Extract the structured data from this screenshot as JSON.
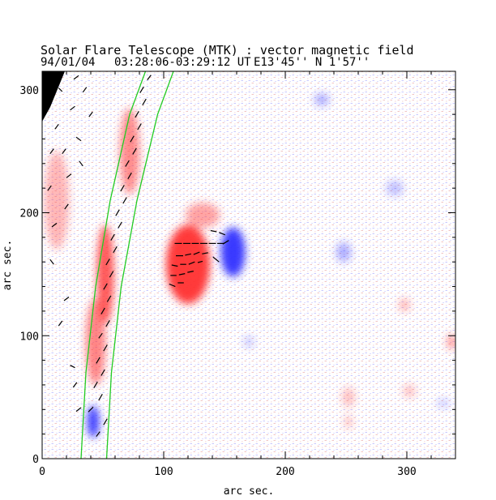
{
  "chart_data": {
    "type": "heatmap",
    "title": "Solar Flare Telescope (MTK) : vector magnetic field",
    "subtitle": {
      "date": "94/01/04",
      "time_range": "03:28:06-03:29:12 UT",
      "position": "E13'45''  N 1'57''"
    },
    "xlabel": "arc sec.",
    "ylabel": "arc sec.",
    "xlim": [
      0,
      340
    ],
    "ylim": [
      0,
      315
    ],
    "x_ticks": [
      0,
      100,
      200,
      300
    ],
    "y_ticks": [
      0,
      100,
      200,
      300
    ],
    "grid": false,
    "colors": {
      "positive_polarity": "#ff3030",
      "negative_polarity": "#2f2fff",
      "contour": "#22cc22",
      "transverse_vectors": "#000000",
      "frame": "#000000"
    },
    "regions": [
      {
        "polarity": "positive",
        "x": 120,
        "y": 158,
        "rx": 18,
        "ry": 32,
        "strength": 0.95
      },
      {
        "polarity": "negative",
        "x": 157,
        "y": 168,
        "rx": 10,
        "ry": 20,
        "strength": 0.95
      },
      {
        "polarity": "positive",
        "x": 132,
        "y": 198,
        "rx": 14,
        "ry": 10,
        "strength": 0.45
      },
      {
        "polarity": "positive",
        "x": 52,
        "y": 150,
        "rx": 7,
        "ry": 40,
        "strength": 0.8
      },
      {
        "polarity": "positive",
        "x": 44,
        "y": 95,
        "rx": 8,
        "ry": 35,
        "strength": 0.6
      },
      {
        "polarity": "positive",
        "x": 72,
        "y": 250,
        "rx": 8,
        "ry": 35,
        "strength": 0.55
      },
      {
        "polarity": "positive",
        "x": 12,
        "y": 210,
        "rx": 10,
        "ry": 40,
        "strength": 0.35
      },
      {
        "polarity": "negative",
        "x": 42,
        "y": 30,
        "rx": 5,
        "ry": 13,
        "strength": 0.9
      },
      {
        "polarity": "negative",
        "x": 248,
        "y": 168,
        "rx": 6,
        "ry": 8,
        "strength": 0.4
      },
      {
        "polarity": "negative",
        "x": 230,
        "y": 292,
        "rx": 6,
        "ry": 5,
        "strength": 0.4
      },
      {
        "polarity": "negative",
        "x": 290,
        "y": 220,
        "rx": 7,
        "ry": 6,
        "strength": 0.3
      },
      {
        "polarity": "positive",
        "x": 298,
        "y": 125,
        "rx": 4,
        "ry": 5,
        "strength": 0.4
      },
      {
        "polarity": "positive",
        "x": 252,
        "y": 50,
        "rx": 5,
        "ry": 8,
        "strength": 0.3
      },
      {
        "polarity": "positive",
        "x": 252,
        "y": 30,
        "rx": 3,
        "ry": 5,
        "strength": 0.35
      },
      {
        "polarity": "positive",
        "x": 337,
        "y": 95,
        "rx": 4,
        "ry": 6,
        "strength": 0.5
      },
      {
        "polarity": "positive",
        "x": 302,
        "y": 55,
        "rx": 5,
        "ry": 5,
        "strength": 0.3
      },
      {
        "polarity": "negative",
        "x": 170,
        "y": 95,
        "rx": 4,
        "ry": 4,
        "strength": 0.3
      },
      {
        "polarity": "negative",
        "x": 330,
        "y": 45,
        "rx": 5,
        "ry": 3,
        "strength": 0.3
      }
    ],
    "limb_contours": [
      {
        "name": "inner",
        "points": [
          [
            32,
            0
          ],
          [
            36,
            70
          ],
          [
            44,
            140
          ],
          [
            56,
            210
          ],
          [
            72,
            280
          ],
          [
            85,
            315
          ]
        ]
      },
      {
        "name": "outer",
        "points": [
          [
            53,
            0
          ],
          [
            57,
            70
          ],
          [
            65,
            140
          ],
          [
            78,
            210
          ],
          [
            95,
            280
          ],
          [
            108,
            315
          ]
        ]
      }
    ],
    "transverse_vectors": [
      [
        113,
        165,
        6,
        0
      ],
      [
        120,
        166,
        5,
        1
      ],
      [
        127,
        167,
        5,
        2
      ],
      [
        134,
        167,
        5,
        1
      ],
      [
        109,
        157,
        5,
        -1
      ],
      [
        116,
        158,
        5,
        0
      ],
      [
        123,
        159,
        5,
        2
      ],
      [
        130,
        160,
        4,
        1
      ],
      [
        108,
        149,
        5,
        0
      ],
      [
        115,
        150,
        5,
        1
      ],
      [
        122,
        152,
        5,
        1
      ],
      [
        107,
        141,
        5,
        -2
      ],
      [
        114,
        143,
        5,
        0
      ],
      [
        112,
        175,
        6,
        0
      ],
      [
        119,
        175,
        6,
        0
      ],
      [
        126,
        175,
        6,
        0
      ],
      [
        133,
        175,
        6,
        0
      ],
      [
        140,
        175,
        6,
        0
      ],
      [
        147,
        175,
        6,
        0
      ],
      [
        141,
        185,
        5,
        -1
      ],
      [
        148,
        183,
        5,
        -2
      ],
      [
        143,
        162,
        5,
        -4
      ],
      [
        151,
        176,
        5,
        3
      ],
      [
        46,
        20,
        3,
        4
      ],
      [
        52,
        30,
        3,
        5
      ],
      [
        40,
        40,
        4,
        4
      ],
      [
        48,
        50,
        3,
        5
      ],
      [
        44,
        60,
        3,
        5
      ],
      [
        50,
        70,
        3,
        5
      ],
      [
        46,
        80,
        3,
        5
      ],
      [
        52,
        90,
        3,
        5
      ],
      [
        48,
        100,
        3,
        4
      ],
      [
        54,
        110,
        3,
        5
      ],
      [
        50,
        120,
        3,
        5
      ],
      [
        55,
        130,
        3,
        5
      ],
      [
        52,
        140,
        3,
        5
      ],
      [
        57,
        150,
        3,
        5
      ],
      [
        54,
        160,
        3,
        5
      ],
      [
        60,
        170,
        3,
        5
      ],
      [
        58,
        180,
        3,
        5
      ],
      [
        64,
        190,
        3,
        5
      ],
      [
        62,
        200,
        3,
        5
      ],
      [
        68,
        210,
        3,
        5
      ],
      [
        66,
        220,
        3,
        5
      ],
      [
        72,
        230,
        3,
        5
      ],
      [
        70,
        240,
        3,
        5
      ],
      [
        76,
        250,
        3,
        5
      ],
      [
        74,
        260,
        3,
        5
      ],
      [
        80,
        270,
        3,
        5
      ],
      [
        78,
        280,
        3,
        5
      ],
      [
        84,
        290,
        3,
        5
      ],
      [
        82,
        300,
        3,
        5
      ],
      [
        88,
        310,
        3,
        4
      ],
      [
        30,
        40,
        4,
        3
      ],
      [
        27,
        60,
        3,
        4
      ],
      [
        25,
        75,
        4,
        -2
      ],
      [
        15,
        110,
        3,
        4
      ],
      [
        20,
        130,
        4,
        3
      ],
      [
        8,
        160,
        3,
        -4
      ],
      [
        10,
        190,
        4,
        3
      ],
      [
        6,
        220,
        3,
        4
      ],
      [
        22,
        230,
        4,
        3
      ],
      [
        18,
        250,
        3,
        4
      ],
      [
        30,
        260,
        4,
        -3
      ],
      [
        12,
        270,
        3,
        4
      ],
      [
        25,
        285,
        4,
        3
      ],
      [
        35,
        300,
        3,
        4
      ],
      [
        15,
        300,
        3,
        -3
      ],
      [
        40,
        280,
        3,
        4
      ],
      [
        20,
        205,
        3,
        4
      ],
      [
        32,
        240,
        3,
        -4
      ],
      [
        8,
        250,
        3,
        4
      ],
      [
        28,
        310,
        4,
        3
      ]
    ]
  }
}
